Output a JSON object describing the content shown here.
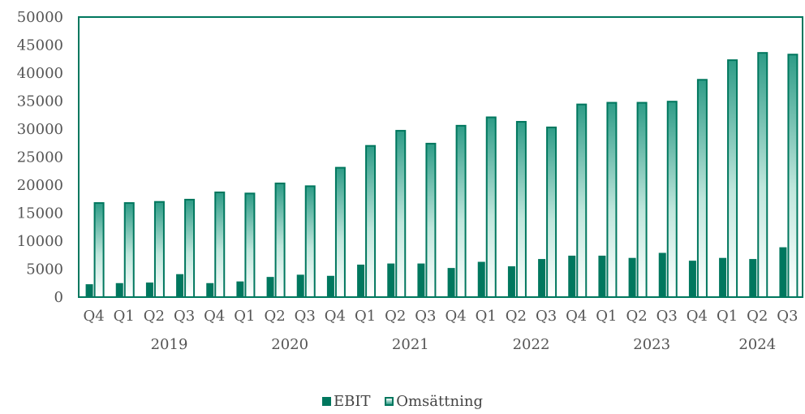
{
  "colors": {
    "ebit": "#00775e",
    "omsattning_edge": "#00775e",
    "omsattning_top": "#2e9c87",
    "omsattning_bottom": "#ffffff",
    "axis": "#00775e",
    "text": "#555555"
  },
  "chart_data": {
    "type": "bar",
    "title": "",
    "xlabel": "",
    "ylabel": "",
    "ylim": [
      0,
      50000
    ],
    "yticks": [
      "0",
      "5000",
      "10000",
      "15000",
      "20000",
      "25000",
      "30000",
      "35000",
      "40000",
      "45000",
      "50000"
    ],
    "grid": false,
    "legend_position": "bottom",
    "categories": [
      "Q4",
      "Q1",
      "Q2",
      "Q3",
      "Q4",
      "Q1",
      "Q2",
      "Q3",
      "Q4",
      "Q1",
      "Q2",
      "Q3",
      "Q4",
      "Q1",
      "Q2",
      "Q3",
      "Q4",
      "Q1",
      "Q2",
      "Q3",
      "Q4",
      "Q1",
      "Q2",
      "Q3"
    ],
    "year_groups": [
      {
        "label": "2019",
        "start": 1,
        "end": 4
      },
      {
        "label": "2020",
        "start": 5,
        "end": 8
      },
      {
        "label": "2021",
        "start": 9,
        "end": 12
      },
      {
        "label": "2022",
        "start": 13,
        "end": 16
      },
      {
        "label": "2023",
        "start": 17,
        "end": 20
      },
      {
        "label": "2024",
        "start": 21,
        "end": 23
      }
    ],
    "series": [
      {
        "name": "EBIT",
        "values": [
          2300,
          2500,
          2600,
          4100,
          2500,
          2800,
          3600,
          4000,
          3800,
          5800,
          6000,
          6000,
          5200,
          6300,
          5500,
          6800,
          7400,
          7400,
          7000,
          7900,
          6500,
          7000,
          6800,
          8900
        ]
      },
      {
        "name": "Omsättning",
        "values": [
          16800,
          16800,
          17000,
          17400,
          18700,
          18500,
          20300,
          19800,
          23100,
          27000,
          29700,
          27400,
          30600,
          32100,
          31300,
          30300,
          34400,
          34700,
          34700,
          34900,
          38800,
          42300,
          43600,
          43300
        ]
      }
    ]
  }
}
